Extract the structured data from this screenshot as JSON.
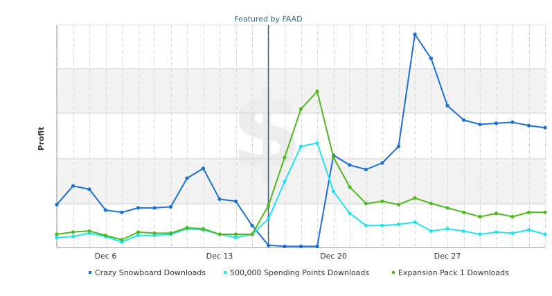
{
  "chart_data": {
    "type": "line",
    "ylabel": "Profit",
    "x_dates": [
      "Dec 3",
      "Dec 4",
      "Dec 5",
      "Dec 6",
      "Dec 7",
      "Dec 8",
      "Dec 9",
      "Dec 10",
      "Dec 11",
      "Dec 12",
      "Dec 13",
      "Dec 14",
      "Dec 15",
      "Dec 16",
      "Dec 17",
      "Dec 18",
      "Dec 19",
      "Dec 20",
      "Dec 21",
      "Dec 22",
      "Dec 23",
      "Dec 24",
      "Dec 25",
      "Dec 26",
      "Dec 27",
      "Dec 28",
      "Dec 29",
      "Dec 30",
      "Dec 31",
      "Jan 1",
      "Jan 2"
    ],
    "x_tick_labels": [
      "Dec 6",
      "Dec 13",
      "Dec 20",
      "Dec 27"
    ],
    "x_tick_dates": [
      "Dec 6",
      "Dec 13",
      "Dec 20",
      "Dec 27"
    ],
    "ylim": [
      0,
      100
    ],
    "grid": true,
    "legend_position": "bottom",
    "annotation": {
      "label": "Featured by FAAD",
      "x_date": "Dec 16",
      "x_offset_days": 0.0,
      "color": "#2e6b8c"
    },
    "series": [
      {
        "name": "Crazy Snowboard  Downloads",
        "color": "#1a6fd4",
        "values": [
          19.5,
          28,
          26.5,
          17,
          16,
          18,
          18,
          18.5,
          31.5,
          36,
          22,
          21,
          10,
          1,
          0.5,
          0.5,
          0.5,
          42,
          37.5,
          35.5,
          38.5,
          46,
          97,
          86,
          64.5,
          58,
          56,
          56.5,
          57,
          55.5,
          54.5
        ]
      },
      {
        "name": "500,000 Spending Points  Downloads",
        "color": "#1ee3f5",
        "values": [
          4.5,
          5,
          6.5,
          5,
          2.5,
          5.5,
          5.5,
          6,
          8.5,
          8,
          6,
          4.5,
          6,
          13,
          30,
          46,
          47.5,
          25.5,
          15.5,
          10,
          10,
          10.5,
          11.5,
          7.5,
          8.5,
          7.5,
          6,
          7,
          6.5,
          8,
          6
        ]
      },
      {
        "name": "Expansion Pack 1  Downloads",
        "color": "#4fb81c",
        "values": [
          6,
          7,
          7.5,
          5.5,
          3.5,
          7,
          6.5,
          6.5,
          9,
          8.5,
          6,
          6,
          6,
          19,
          41,
          63,
          71,
          41,
          27.5,
          20,
          21,
          19.5,
          22.5,
          20,
          18,
          16,
          14,
          15.5,
          14,
          16,
          16
        ]
      }
    ]
  }
}
